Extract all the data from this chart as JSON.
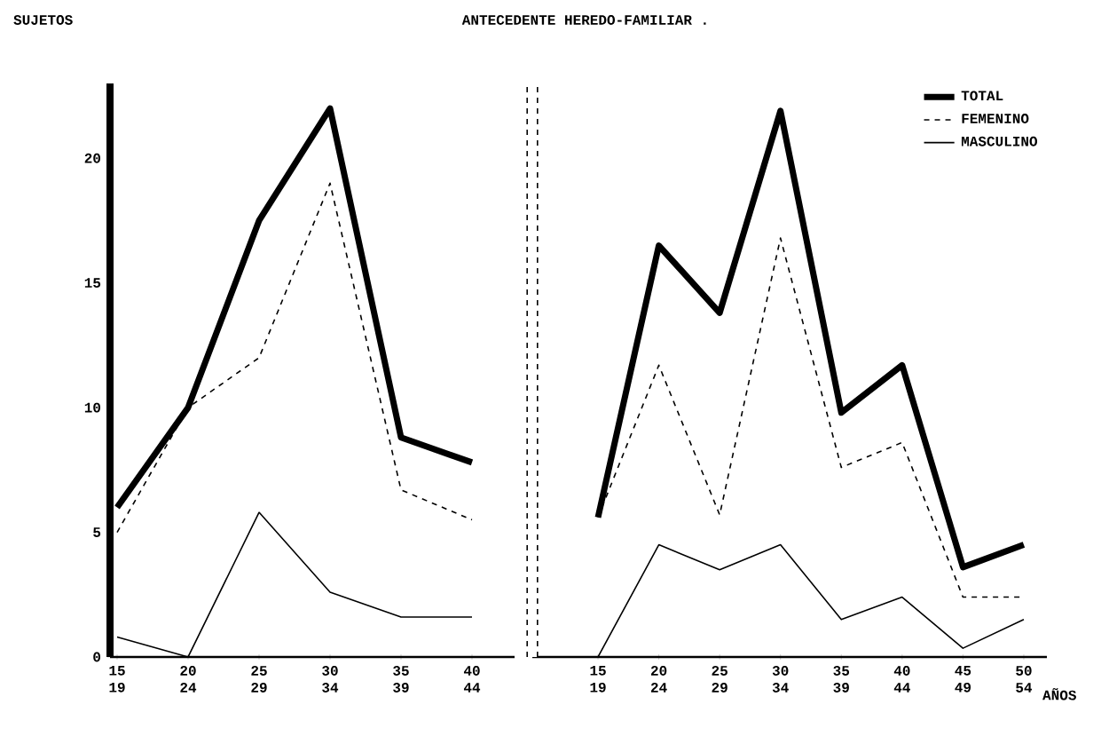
{
  "chart_data": [
    {
      "type": "line",
      "ylabel": "SUJETOS",
      "categories": [
        "15 19",
        "20 24",
        "25 29",
        "30 34",
        "35 39",
        "40 44"
      ],
      "ylim": [
        0,
        23
      ],
      "yticks": [
        0,
        5,
        10,
        15,
        20
      ],
      "grid": false,
      "legend": false,
      "marker": "none",
      "series": [
        {
          "color": "#000000",
          "line_style": "solid",
          "values": [
            6,
            10,
            17.5,
            22,
            8.8,
            7.8
          ]
        },
        {
          "color": "#000000",
          "line_style": "dashed",
          "values": [
            5,
            10,
            12,
            19,
            6.7,
            5.5
          ]
        },
        {
          "color": "#000000",
          "line_style": "solid",
          "values": [
            0.8,
            0,
            5.8,
            2.6,
            1.6,
            1.6
          ]
        }
      ]
    },
    {
      "type": "line",
      "title": "ANTECEDENTE HEREDO-FAMILIAR .",
      "xlabel": "AÑOS",
      "categories": [
        "15 19",
        "20 24",
        "25 29",
        "30 34",
        "35 39",
        "40 44",
        "45 49",
        "50 54"
      ],
      "ylim": [
        0,
        23
      ],
      "tick_labels": "x",
      "grid": false,
      "legend": "top right",
      "marker": "none",
      "series": [
        {
          "name": "TOTAL",
          "color": "#000000",
          "line_style": "solid",
          "values": [
            5.6,
            16.5,
            13.8,
            21.9,
            9.8,
            11.7,
            3.6,
            4.5
          ]
        },
        {
          "name": "FEMENINO",
          "color": "#000000",
          "line_style": "dashed",
          "values": [
            5.6,
            11.7,
            5.7,
            16.8,
            7.6,
            8.6,
            2.4,
            2.4
          ]
        },
        {
          "name": "MASCULINO",
          "color": "#000000",
          "line_style": "solid",
          "values": [
            0,
            4.5,
            3.5,
            4.5,
            1.5,
            2.4,
            0.35,
            1.5
          ]
        }
      ]
    }
  ]
}
